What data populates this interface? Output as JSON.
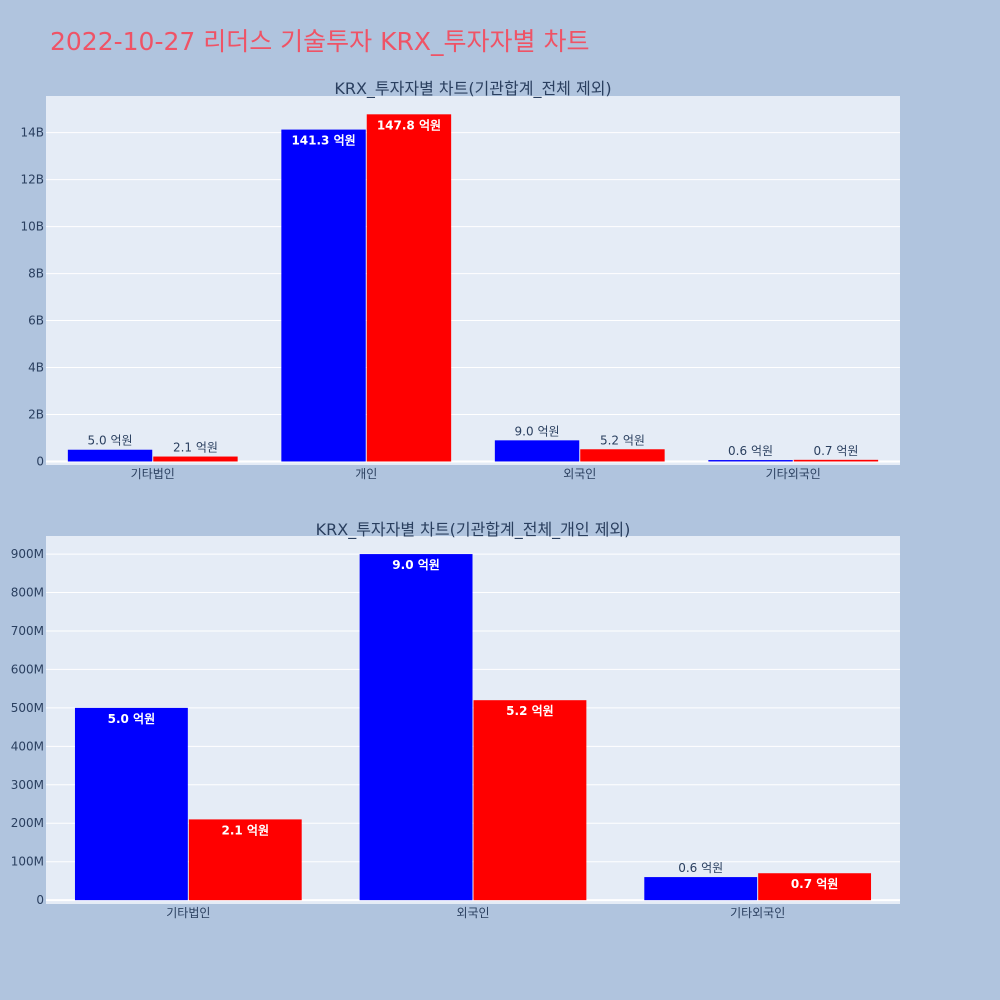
{
  "title": "2022-10-27 리더스 기술투자 KRX_투자자별 차트",
  "colors": {
    "background": "#b0c4de",
    "plot_bg": "#e5ecf6",
    "title": "#ef5366",
    "series1": "#0000ff",
    "series2": "#ff0000"
  },
  "chart_data": [
    {
      "type": "bar",
      "title": "KRX_투자자별 차트(기관합계_전체 제외)",
      "categories": [
        "기타법인",
        "개인",
        "외국인",
        "기타외국인"
      ],
      "series": [
        {
          "values": [
            500000000,
            14130000000,
            900000000,
            60000000
          ],
          "labels": [
            "5.0 억원",
            "141.3 억원",
            "9.0 억원",
            "0.6 억원"
          ],
          "color": "#0000ff"
        },
        {
          "values": [
            210000000,
            14780000000,
            520000000,
            70000000
          ],
          "labels": [
            "2.1 억원",
            "147.8 억원",
            "5.2 억원",
            "0.7 억원"
          ],
          "color": "#ff0000"
        }
      ],
      "yticks": [
        {
          "value": 0,
          "label": "0"
        },
        {
          "value": 2000000000,
          "label": "2B"
        },
        {
          "value": 4000000000,
          "label": "4B"
        },
        {
          "value": 6000000000,
          "label": "6B"
        },
        {
          "value": 8000000000,
          "label": "8B"
        },
        {
          "value": 10000000000,
          "label": "10B"
        },
        {
          "value": 12000000000,
          "label": "12B"
        },
        {
          "value": 14000000000,
          "label": "14B"
        }
      ],
      "ylim": [
        -150000000,
        15560000000
      ],
      "grid": true
    },
    {
      "type": "bar",
      "title": "KRX_투자자별 차트(기관합계_전체_개인 제외)",
      "categories": [
        "기타법인",
        "외국인",
        "기타외국인"
      ],
      "series": [
        {
          "values": [
            500000000,
            900000000,
            60000000
          ],
          "labels": [
            "5.0 억원",
            "9.0 억원",
            "0.6 억원"
          ],
          "color": "#0000ff"
        },
        {
          "values": [
            210000000,
            520000000,
            70000000
          ],
          "labels": [
            "2.1 억원",
            "5.2 억원",
            "0.7 억원"
          ],
          "color": "#ff0000"
        }
      ],
      "yticks": [
        {
          "value": 0,
          "label": "0"
        },
        {
          "value": 100000000,
          "label": "100M"
        },
        {
          "value": 200000000,
          "label": "200M"
        },
        {
          "value": 300000000,
          "label": "300M"
        },
        {
          "value": 400000000,
          "label": "400M"
        },
        {
          "value": 500000000,
          "label": "500M"
        },
        {
          "value": 600000000,
          "label": "600M"
        },
        {
          "value": 700000000,
          "label": "700M"
        },
        {
          "value": 800000000,
          "label": "800M"
        },
        {
          "value": 900000000,
          "label": "900M"
        }
      ],
      "ylim": [
        -10000000,
        947000000
      ],
      "grid": true
    }
  ]
}
